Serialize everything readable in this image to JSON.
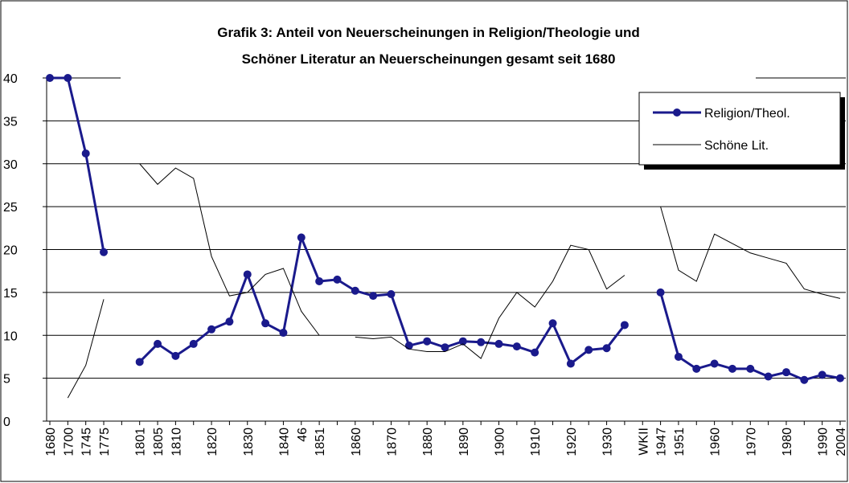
{
  "chart_data": {
    "type": "line",
    "title": [
      "Grafik 3: Anteil von Neuerscheinungen in Religion/Theologie und",
      "Schöner Literatur an Neuerscheinungen gesamt seit 1680"
    ],
    "categories": [
      "1680",
      "1700",
      "1745",
      "1775",
      null,
      "1801",
      "1805",
      "1810",
      null,
      "1820",
      null,
      "1830",
      null,
      "1840",
      "46",
      "1851",
      null,
      "1860",
      null,
      "1870",
      null,
      "1880",
      null,
      "1890",
      null,
      "1900",
      null,
      "1910",
      null,
      "1920",
      null,
      "1930",
      null,
      "WKII",
      "1947",
      "1951",
      null,
      "1960",
      null,
      "1970",
      null,
      "1980",
      null,
      "1990",
      "2004"
    ],
    "series": [
      {
        "name": "Religion/Theol.",
        "color": "#1a1a8c",
        "markers": true,
        "values": [
          40,
          40,
          31.2,
          19.7,
          null,
          6.9,
          9,
          7.6,
          9,
          10.7,
          11.6,
          17.1,
          11.4,
          10.3,
          21.4,
          16.3,
          16.5,
          15.2,
          14.6,
          14.8,
          8.8,
          9.3,
          8.6,
          9.3,
          9.2,
          9,
          8.7,
          8,
          11.4,
          6.7,
          8.3,
          8.5,
          11.2,
          null,
          15,
          7.5,
          6.1,
          6.7,
          6.1,
          6.1,
          5.2,
          5.7,
          4.8,
          5.4,
          5.0
        ]
      },
      {
        "name": "Schöne Lit.",
        "color": "#000000",
        "markers": false,
        "values": [
          null,
          2.7,
          6.5,
          14.2,
          null,
          30,
          27.6,
          29.5,
          28.3,
          19.2,
          14.6,
          15,
          17.1,
          17.8,
          12.8,
          10,
          null,
          9.8,
          9.6,
          9.8,
          8.4,
          8.1,
          8.1,
          9.0,
          7.3,
          12,
          15,
          13.3,
          16.3,
          20.5,
          20,
          15.4,
          17,
          null,
          25,
          17.6,
          16.3,
          21.8,
          20.7,
          19.6,
          19,
          18.4,
          15.4,
          14.8,
          14.3
        ]
      }
    ],
    "ylim": [
      0,
      40
    ],
    "yticks": [
      0,
      5,
      10,
      15,
      20,
      25,
      30,
      35,
      40
    ],
    "grid": true
  }
}
